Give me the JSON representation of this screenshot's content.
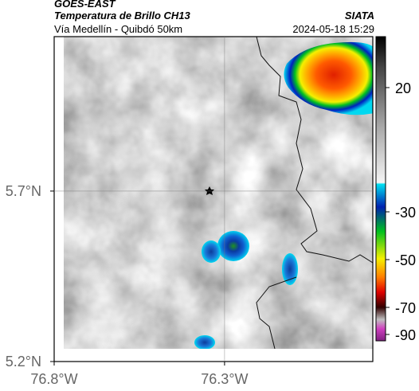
{
  "header": {
    "title": "GOES-EAST",
    "subtitle": "Temperatura de Brillo CH13",
    "source": "SIATA",
    "location": "Vía Medellín - Quibdó 50km",
    "timestamp": "2024-05-18 15:29"
  },
  "map": {
    "xlim": [
      -76.8,
      -75.865
    ],
    "ylim": [
      5.2,
      6.153
    ],
    "xticks": [
      {
        "value": -76.8,
        "label": "76.8°W"
      },
      {
        "value": -76.3,
        "label": "76.3°W"
      }
    ],
    "yticks": [
      {
        "value": 5.2,
        "label": "5.2°N"
      },
      {
        "value": 5.7,
        "label": "5.7°N"
      }
    ],
    "grid": true
  },
  "colorbar": {
    "ticks": [
      20,
      -30,
      -50,
      -70,
      -90
    ]
  }
}
